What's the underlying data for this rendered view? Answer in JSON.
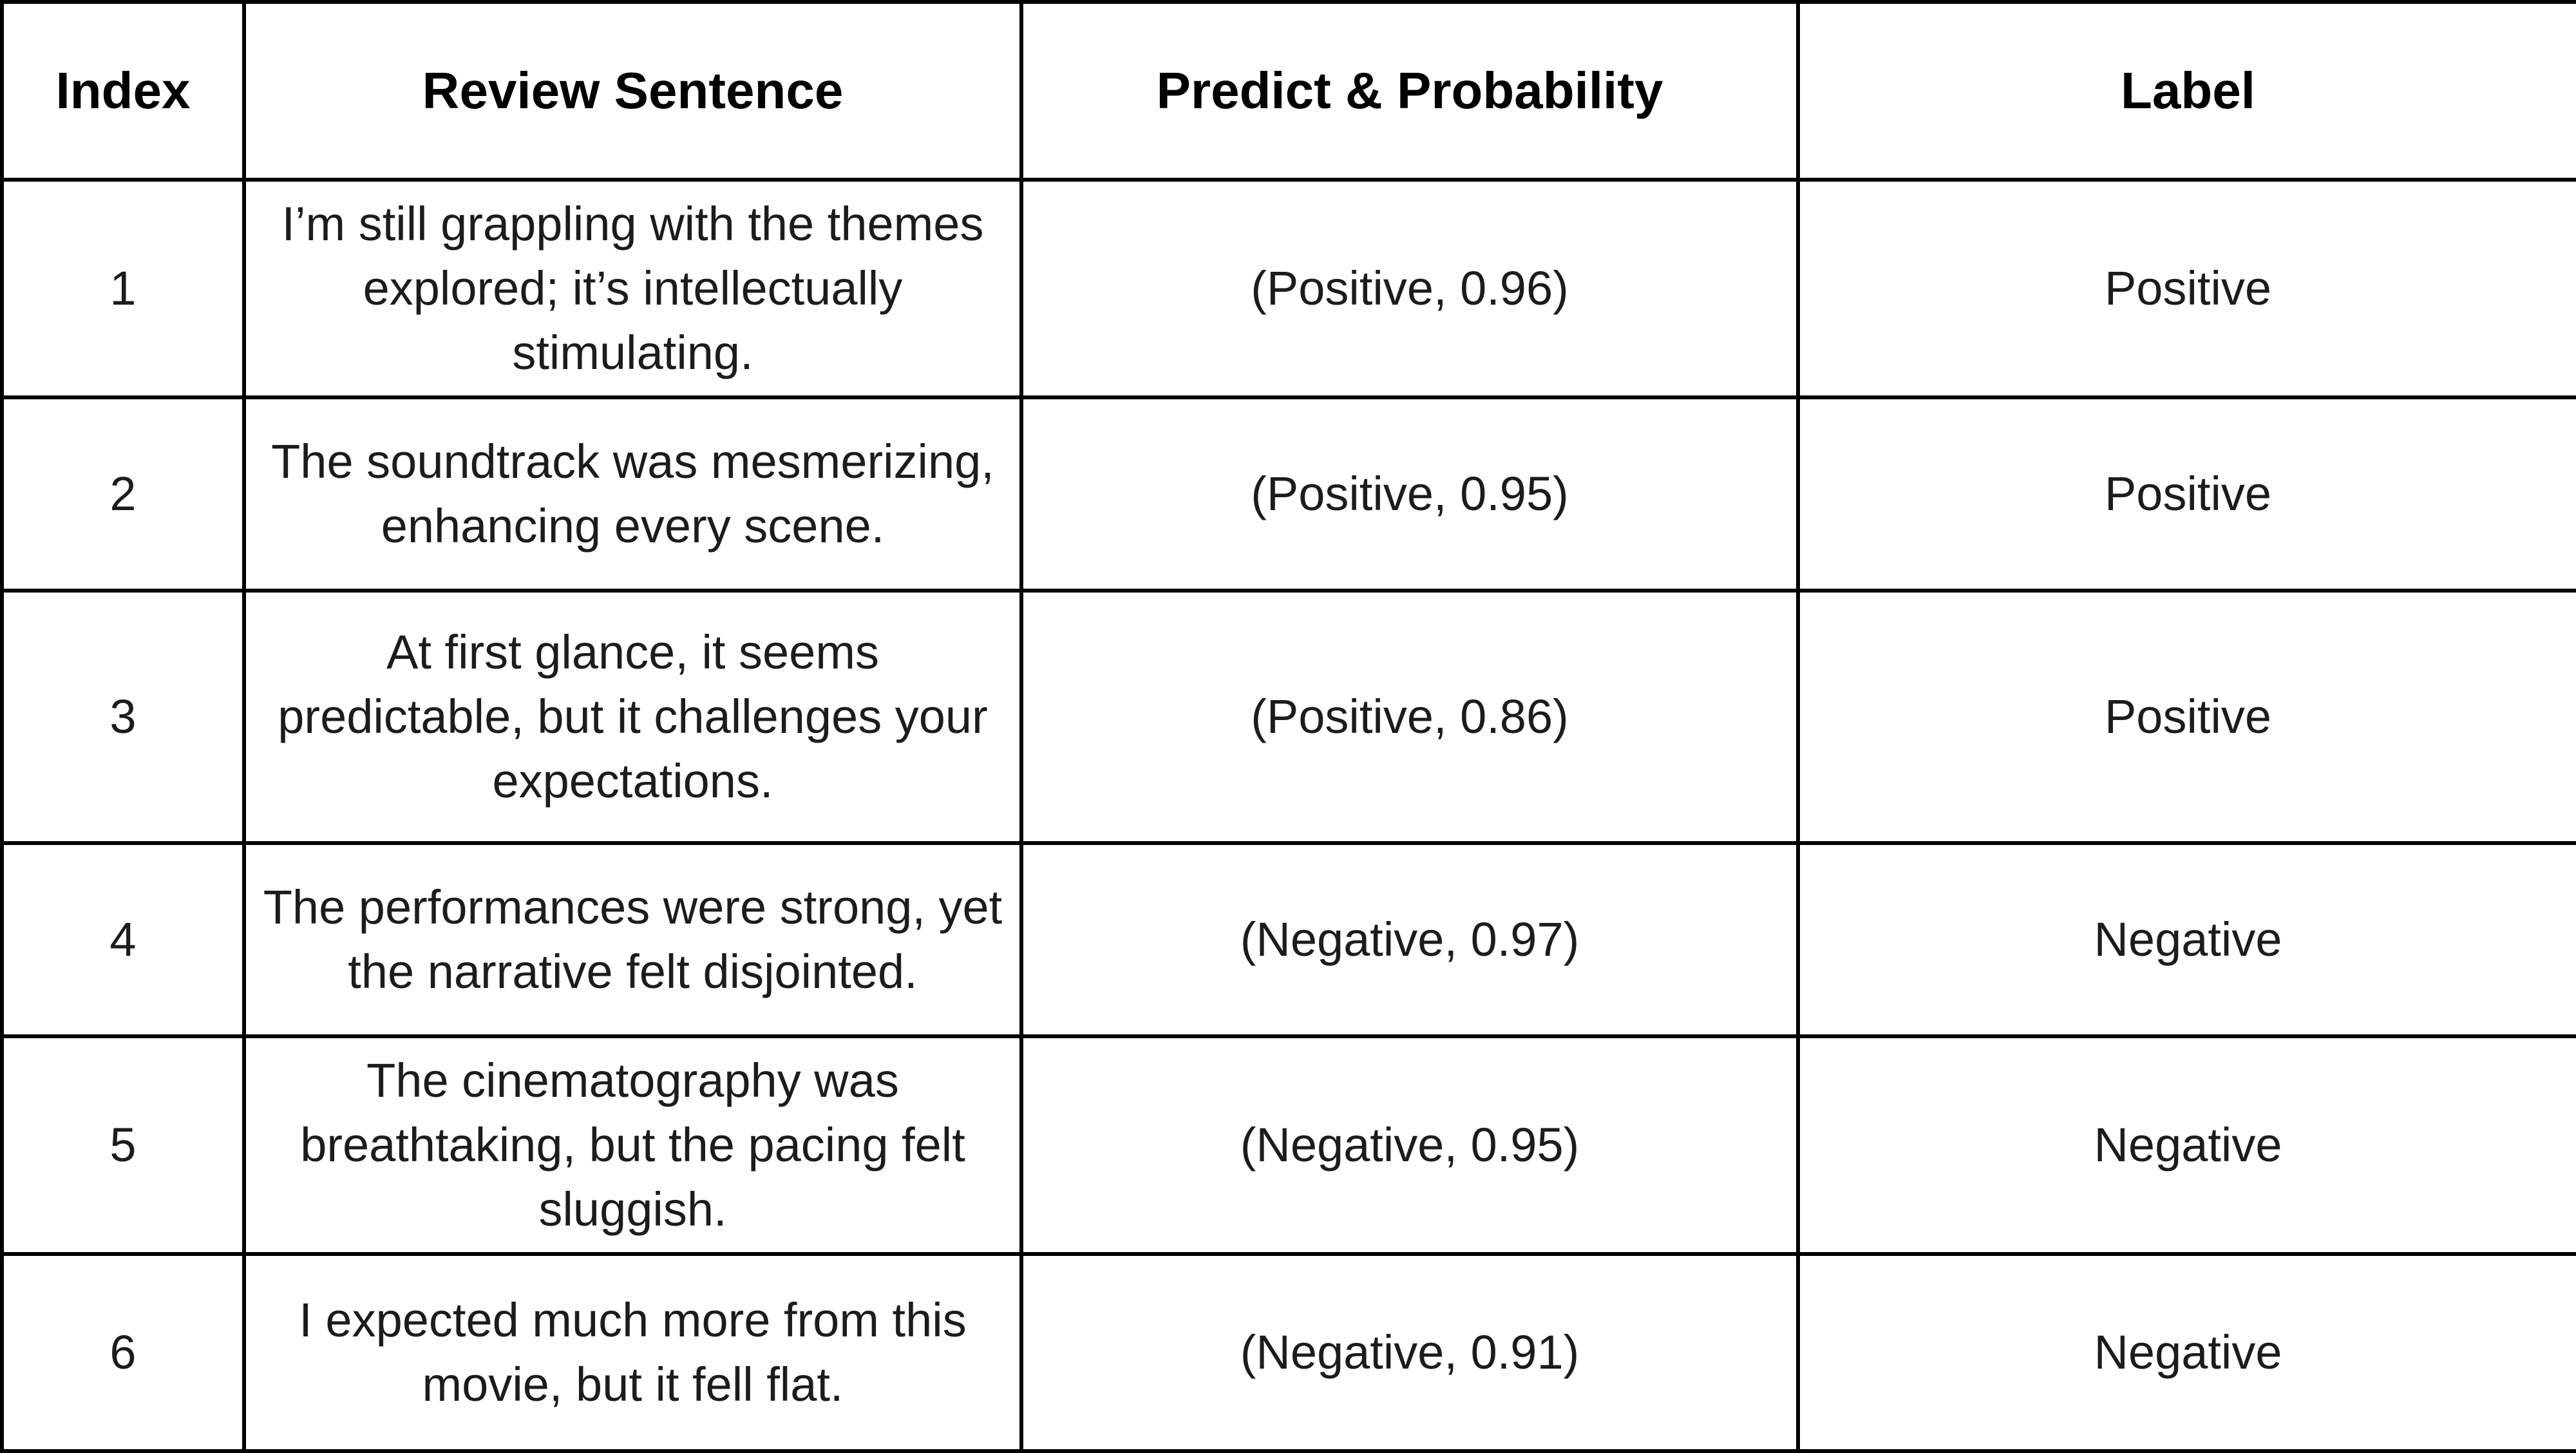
{
  "table": {
    "headers": [
      "Index",
      "Review Sentence",
      "Predict & Probability",
      "Label"
    ],
    "rows": [
      {
        "index": "1",
        "sentence": "I’m still grappling with the themes explored; it’s intellectually stimulating.",
        "predict": "(Positive, 0.96)",
        "label": "Positive"
      },
      {
        "index": "2",
        "sentence": "The soundtrack was mesmerizing, enhancing every scene.",
        "predict": "(Positive, 0.95)",
        "label": "Positive"
      },
      {
        "index": "3",
        "sentence": "At first glance, it seems predictable, but it challenges your expectations.",
        "predict": "(Positive, 0.86)",
        "label": "Positive"
      },
      {
        "index": "4",
        "sentence": "The performances were strong, yet the narrative felt disjointed.",
        "predict": "(Negative, 0.97)",
        "label": "Negative"
      },
      {
        "index": "5",
        "sentence": "The cinematography was breathtaking, but the pacing felt sluggish.",
        "predict": "(Negative, 0.95)",
        "label": "Negative"
      },
      {
        "index": "6",
        "sentence": "I expected much more from this movie, but it fell flat.",
        "predict": "(Negative, 0.91)",
        "label": "Negative"
      }
    ]
  }
}
